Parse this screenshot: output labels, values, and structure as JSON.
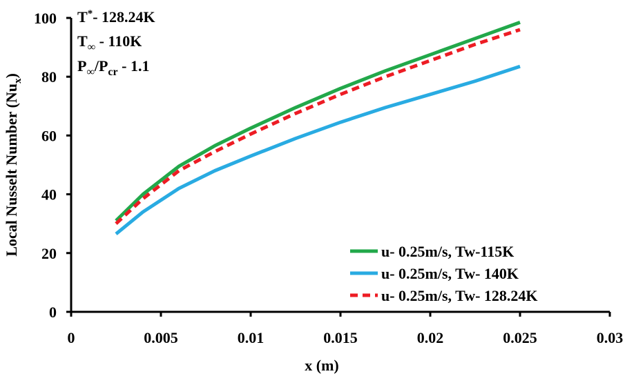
{
  "chart_data": {
    "type": "line",
    "title": "",
    "xlabel": "x (m)",
    "ylabel_main": "Local Nusselt Number (Nu",
    "ylabel_sub": "x",
    "ylabel_close": ")",
    "xlim": [
      0,
      0.03
    ],
    "ylim": [
      0,
      100
    ],
    "x_ticks": [
      0,
      0.005,
      0.01,
      0.015,
      0.02,
      0.025,
      0.03
    ],
    "x_tick_labels": [
      "0",
      "0.005",
      "0.01",
      "0.015",
      "0.02",
      "0.025",
      "0.03"
    ],
    "y_ticks": [
      0,
      20,
      40,
      60,
      80,
      100
    ],
    "y_tick_labels": [
      "0",
      "20",
      "40",
      "60",
      "80",
      "100"
    ],
    "grid": false,
    "legend_position": "bottom-right",
    "series": [
      {
        "name": "u- 0.25m/s, Tw-115K",
        "color": "#22a84a",
        "dash": "solid",
        "x": [
          0.0025,
          0.004,
          0.006,
          0.008,
          0.01,
          0.0125,
          0.015,
          0.0175,
          0.02,
          0.0225,
          0.025
        ],
        "values": [
          31.0,
          40.0,
          49.5,
          56.5,
          62.5,
          69.5,
          76.0,
          82.0,
          87.5,
          93.0,
          98.5
        ]
      },
      {
        "name": "u- 0.25m/s, Tw- 140K",
        "color": "#29abe2",
        "dash": "solid",
        "x": [
          0.0025,
          0.004,
          0.006,
          0.008,
          0.01,
          0.0125,
          0.015,
          0.0175,
          0.02,
          0.0225,
          0.025
        ],
        "values": [
          26.5,
          34.0,
          42.0,
          48.0,
          53.0,
          59.0,
          64.5,
          69.5,
          74.0,
          78.5,
          83.5
        ]
      },
      {
        "name": "u- 0.25m/s, Tw- 128.24K",
        "color": "#ed1c24",
        "dash": "dashed",
        "x": [
          0.0025,
          0.004,
          0.006,
          0.008,
          0.01,
          0.0125,
          0.015,
          0.0175,
          0.02,
          0.0225,
          0.025
        ],
        "values": [
          30.0,
          38.5,
          48.0,
          54.5,
          60.5,
          67.5,
          74.0,
          80.0,
          85.5,
          91.0,
          96.0
        ]
      }
    ],
    "annotations": {
      "line1_main": "T",
      "line1_sup": "*",
      "line1_rest": "- 128.24K",
      "line2_main": "T",
      "line2_sub": "∞",
      "line2_rest": " - 110K",
      "line3_p1": "P",
      "line3_sub1": "∞",
      "line3_slash": "/P",
      "line3_sub2": "cr",
      "line3_rest": " - 1.1"
    }
  }
}
